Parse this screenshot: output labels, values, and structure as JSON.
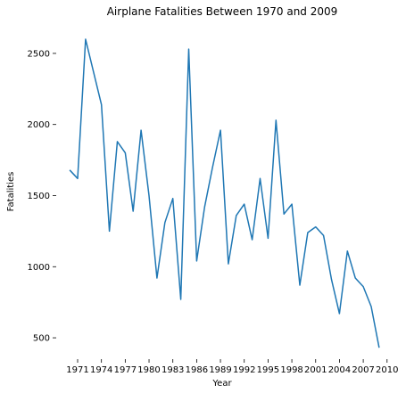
{
  "chart_data": {
    "type": "line",
    "title": "Airplane Fatalities Between 1970 and 2009",
    "xlabel": "Year",
    "ylabel": "Fatalities",
    "xlim": [
      1968.3,
      2010.7
    ],
    "ylim": [
      350,
      2700
    ],
    "xticks": [
      1971,
      1974,
      1977,
      1980,
      1983,
      1986,
      1989,
      1992,
      1995,
      1998,
      2001,
      2004,
      2007,
      2010
    ],
    "yticks": [
      500,
      1000,
      1500,
      2000,
      2500
    ],
    "grid": false,
    "line_color": "#1f77b4",
    "series": [
      {
        "x": [
          1970,
          1971,
          1972,
          1973,
          1974,
          1975,
          1976,
          1977,
          1978,
          1979,
          1980,
          1981,
          1982,
          1983,
          1984,
          1985,
          1986,
          1987,
          1988,
          1989,
          1990,
          1991,
          1992,
          1993,
          1994,
          1995,
          1996,
          1997,
          1998,
          1999,
          2000,
          2001,
          2002,
          2003,
          2004,
          2005,
          2006,
          2007,
          2008,
          2009
        ],
        "values": [
          1680,
          1620,
          2600,
          2370,
          2140,
          1250,
          1880,
          1800,
          1390,
          1960,
          1500,
          920,
          1310,
          1480,
          770,
          2530,
          1040,
          1420,
          1700,
          1960,
          1020,
          1360,
          1440,
          1190,
          1620,
          1200,
          2030,
          1370,
          1440,
          870,
          1240,
          1280,
          1220,
          910,
          670,
          1110,
          920,
          860,
          720,
          430
        ]
      }
    ]
  }
}
